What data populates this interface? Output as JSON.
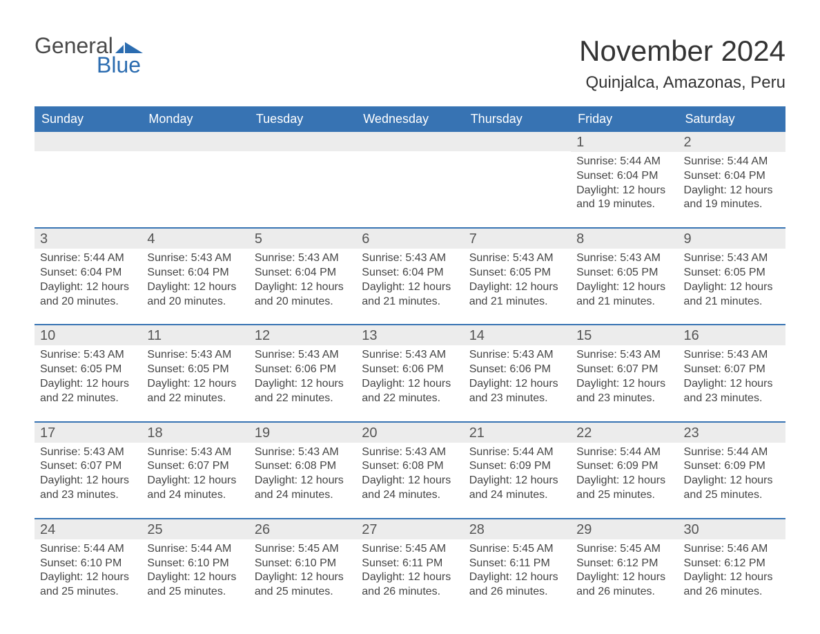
{
  "brand": {
    "word1": "General",
    "word2": "Blue",
    "accent_color": "#2b6cb0",
    "text_color": "#4a4a4a"
  },
  "title": "November 2024",
  "location": "Quinjalca, Amazonas, Peru",
  "header_bg": "#3773b3",
  "header_fg": "#ffffff",
  "daynum_bg": "#ececec",
  "week_border": "#3773b3",
  "day_headers": [
    "Sunday",
    "Monday",
    "Tuesday",
    "Wednesday",
    "Thursday",
    "Friday",
    "Saturday"
  ],
  "weeks": [
    [
      null,
      null,
      null,
      null,
      null,
      {
        "n": 1,
        "sunrise": "5:44 AM",
        "sunset": "6:04 PM",
        "daylight": "12 hours and 19 minutes."
      },
      {
        "n": 2,
        "sunrise": "5:44 AM",
        "sunset": "6:04 PM",
        "daylight": "12 hours and 19 minutes."
      }
    ],
    [
      {
        "n": 3,
        "sunrise": "5:44 AM",
        "sunset": "6:04 PM",
        "daylight": "12 hours and 20 minutes."
      },
      {
        "n": 4,
        "sunrise": "5:43 AM",
        "sunset": "6:04 PM",
        "daylight": "12 hours and 20 minutes."
      },
      {
        "n": 5,
        "sunrise": "5:43 AM",
        "sunset": "6:04 PM",
        "daylight": "12 hours and 20 minutes."
      },
      {
        "n": 6,
        "sunrise": "5:43 AM",
        "sunset": "6:04 PM",
        "daylight": "12 hours and 21 minutes."
      },
      {
        "n": 7,
        "sunrise": "5:43 AM",
        "sunset": "6:05 PM",
        "daylight": "12 hours and 21 minutes."
      },
      {
        "n": 8,
        "sunrise": "5:43 AM",
        "sunset": "6:05 PM",
        "daylight": "12 hours and 21 minutes."
      },
      {
        "n": 9,
        "sunrise": "5:43 AM",
        "sunset": "6:05 PM",
        "daylight": "12 hours and 21 minutes."
      }
    ],
    [
      {
        "n": 10,
        "sunrise": "5:43 AM",
        "sunset": "6:05 PM",
        "daylight": "12 hours and 22 minutes."
      },
      {
        "n": 11,
        "sunrise": "5:43 AM",
        "sunset": "6:05 PM",
        "daylight": "12 hours and 22 minutes."
      },
      {
        "n": 12,
        "sunrise": "5:43 AM",
        "sunset": "6:06 PM",
        "daylight": "12 hours and 22 minutes."
      },
      {
        "n": 13,
        "sunrise": "5:43 AM",
        "sunset": "6:06 PM",
        "daylight": "12 hours and 22 minutes."
      },
      {
        "n": 14,
        "sunrise": "5:43 AM",
        "sunset": "6:06 PM",
        "daylight": "12 hours and 23 minutes."
      },
      {
        "n": 15,
        "sunrise": "5:43 AM",
        "sunset": "6:07 PM",
        "daylight": "12 hours and 23 minutes."
      },
      {
        "n": 16,
        "sunrise": "5:43 AM",
        "sunset": "6:07 PM",
        "daylight": "12 hours and 23 minutes."
      }
    ],
    [
      {
        "n": 17,
        "sunrise": "5:43 AM",
        "sunset": "6:07 PM",
        "daylight": "12 hours and 23 minutes."
      },
      {
        "n": 18,
        "sunrise": "5:43 AM",
        "sunset": "6:07 PM",
        "daylight": "12 hours and 24 minutes."
      },
      {
        "n": 19,
        "sunrise": "5:43 AM",
        "sunset": "6:08 PM",
        "daylight": "12 hours and 24 minutes."
      },
      {
        "n": 20,
        "sunrise": "5:43 AM",
        "sunset": "6:08 PM",
        "daylight": "12 hours and 24 minutes."
      },
      {
        "n": 21,
        "sunrise": "5:44 AM",
        "sunset": "6:09 PM",
        "daylight": "12 hours and 24 minutes."
      },
      {
        "n": 22,
        "sunrise": "5:44 AM",
        "sunset": "6:09 PM",
        "daylight": "12 hours and 25 minutes."
      },
      {
        "n": 23,
        "sunrise": "5:44 AM",
        "sunset": "6:09 PM",
        "daylight": "12 hours and 25 minutes."
      }
    ],
    [
      {
        "n": 24,
        "sunrise": "5:44 AM",
        "sunset": "6:10 PM",
        "daylight": "12 hours and 25 minutes."
      },
      {
        "n": 25,
        "sunrise": "5:44 AM",
        "sunset": "6:10 PM",
        "daylight": "12 hours and 25 minutes."
      },
      {
        "n": 26,
        "sunrise": "5:45 AM",
        "sunset": "6:10 PM",
        "daylight": "12 hours and 25 minutes."
      },
      {
        "n": 27,
        "sunrise": "5:45 AM",
        "sunset": "6:11 PM",
        "daylight": "12 hours and 26 minutes."
      },
      {
        "n": 28,
        "sunrise": "5:45 AM",
        "sunset": "6:11 PM",
        "daylight": "12 hours and 26 minutes."
      },
      {
        "n": 29,
        "sunrise": "5:45 AM",
        "sunset": "6:12 PM",
        "daylight": "12 hours and 26 minutes."
      },
      {
        "n": 30,
        "sunrise": "5:46 AM",
        "sunset": "6:12 PM",
        "daylight": "12 hours and 26 minutes."
      }
    ]
  ],
  "labels": {
    "sunrise": "Sunrise: ",
    "sunset": "Sunset: ",
    "daylight": "Daylight: "
  }
}
